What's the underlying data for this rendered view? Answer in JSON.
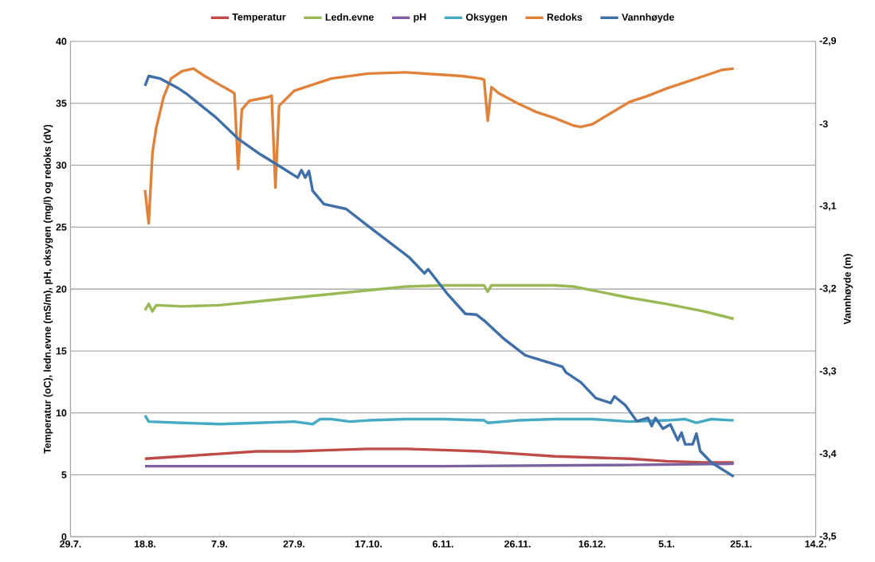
{
  "chart_data": {
    "type": "line",
    "ylabel": "Temperatur (oC), ledn.evne (mS/m), pH, oksygen (mg/l) og redoks (dV)",
    "y2label": "Vannhøyde (m)",
    "xlim": [
      "2010-07-29",
      "2011-02-14"
    ],
    "xticks": [
      {
        "value": "2010-07-29",
        "label": "29.7."
      },
      {
        "value": "2010-08-18",
        "label": "18.8."
      },
      {
        "value": "2010-09-07",
        "label": "7.9."
      },
      {
        "value": "2010-09-27",
        "label": "27.9."
      },
      {
        "value": "2010-10-17",
        "label": "17.10."
      },
      {
        "value": "2010-11-06",
        "label": "6.11."
      },
      {
        "value": "2010-11-26",
        "label": "26.11."
      },
      {
        "value": "2010-12-16",
        "label": "16.12."
      },
      {
        "value": "2011-01-05",
        "label": "5.1."
      },
      {
        "value": "2011-01-25",
        "label": "25.1."
      },
      {
        "value": "2011-02-14",
        "label": "14.2."
      }
    ],
    "ylim": [
      0,
      40
    ],
    "yticks": [
      0,
      5,
      10,
      15,
      20,
      25,
      30,
      35,
      40
    ],
    "y2lim": [
      -3.5,
      -2.9
    ],
    "y2ticks": [
      {
        "value": -3.5,
        "label": "-3,5"
      },
      {
        "value": -3.4,
        "label": "-3,4"
      },
      {
        "value": -3.3,
        "label": "-3,3"
      },
      {
        "value": -3.2,
        "label": "-3,2"
      },
      {
        "value": -3.1,
        "label": "-3,1"
      },
      {
        "value": -3,
        "label": "-3"
      },
      {
        "value": -2.9,
        "label": "-2,9"
      }
    ],
    "grid": "y",
    "legend": "top",
    "marker": "none",
    "line_style": "solid",
    "series": [
      {
        "name": "Temperatur",
        "color": "#be4b48",
        "x": [
          "2010-08-18",
          "2010-08-28",
          "2010-09-07",
          "2010-09-17",
          "2010-09-27",
          "2010-10-07",
          "2010-10-17",
          "2010-10-27",
          "2010-11-06",
          "2010-11-16",
          "2010-11-26",
          "2010-12-06",
          "2010-12-16",
          "2010-12-26",
          "2011-01-05",
          "2011-01-15",
          "2011-01-23"
        ],
        "values": [
          6.3,
          6.5,
          6.7,
          6.9,
          6.9,
          7.0,
          7.1,
          7.1,
          7.0,
          6.9,
          6.7,
          6.5,
          6.4,
          6.3,
          6.1,
          6.0,
          6.0
        ]
      },
      {
        "name": "Ledn.evne",
        "color": "#98b954",
        "x": [
          "2010-08-18",
          "2010-08-19",
          "2010-08-20",
          "2010-08-21",
          "2010-08-28",
          "2010-09-07",
          "2010-09-17",
          "2010-09-27",
          "2010-10-07",
          "2010-10-17",
          "2010-10-27",
          "2010-11-06",
          "2010-11-17",
          "2010-11-18",
          "2010-11-19",
          "2010-12-06",
          "2010-12-11",
          "2010-12-16",
          "2010-12-26",
          "2011-01-05",
          "2011-01-15",
          "2011-01-23"
        ],
        "values": [
          18.3,
          18.8,
          18.2,
          18.7,
          18.6,
          18.7,
          19.0,
          19.3,
          19.6,
          19.9,
          20.2,
          20.3,
          20.3,
          19.8,
          20.3,
          20.3,
          20.2,
          19.9,
          19.3,
          18.8,
          18.2,
          17.6
        ]
      },
      {
        "name": "pH",
        "color": "#7d60a0",
        "x": [
          "2010-08-18",
          "2010-09-07",
          "2010-11-06",
          "2010-12-26",
          "2011-01-23"
        ],
        "values": [
          5.7,
          5.7,
          5.7,
          5.8,
          5.9
        ]
      },
      {
        "name": "Oksygen",
        "color": "#46aac5",
        "x": [
          "2010-08-18",
          "2010-08-19",
          "2010-08-28",
          "2010-09-07",
          "2010-09-17",
          "2010-09-27",
          "2010-10-02",
          "2010-10-04",
          "2010-10-07",
          "2010-10-12",
          "2010-10-17",
          "2010-10-27",
          "2010-11-06",
          "2010-11-17",
          "2010-11-18",
          "2010-11-26",
          "2010-12-06",
          "2010-12-16",
          "2010-12-26",
          "2011-01-05",
          "2011-01-10",
          "2011-01-13",
          "2011-01-17",
          "2011-01-23"
        ],
        "values": [
          9.8,
          9.3,
          9.2,
          9.1,
          9.2,
          9.3,
          9.1,
          9.5,
          9.5,
          9.3,
          9.4,
          9.5,
          9.5,
          9.4,
          9.2,
          9.4,
          9.5,
          9.5,
          9.3,
          9.4,
          9.5,
          9.2,
          9.5,
          9.4
        ]
      },
      {
        "name": "Redoks",
        "color": "#e0823a",
        "x": [
          "2010-08-18",
          "2010-08-19",
          "2010-08-20",
          "2010-08-21",
          "2010-08-23",
          "2010-08-25",
          "2010-08-28",
          "2010-08-31",
          "2010-09-03",
          "2010-09-07",
          "2010-09-10",
          "2010-09-11",
          "2010-09-12",
          "2010-09-13",
          "2010-09-15",
          "2010-09-20",
          "2010-09-21",
          "2010-09-22",
          "2010-09-23",
          "2010-09-27",
          "2010-10-02",
          "2010-10-07",
          "2010-10-17",
          "2010-10-27",
          "2010-11-06",
          "2010-11-11",
          "2010-11-16",
          "2010-11-17",
          "2010-11-18",
          "2010-11-19",
          "2010-11-21",
          "2010-11-26",
          "2010-12-01",
          "2010-12-06",
          "2010-12-11",
          "2010-12-13",
          "2010-12-16",
          "2010-12-21",
          "2010-12-26",
          "2010-12-31",
          "2011-01-05",
          "2011-01-10",
          "2011-01-15",
          "2011-01-20",
          "2011-01-23"
        ],
        "values": [
          28.0,
          25.3,
          31.0,
          33.0,
          35.5,
          37.0,
          37.6,
          37.8,
          37.2,
          36.5,
          36.0,
          35.8,
          29.7,
          34.5,
          35.2,
          35.5,
          35.6,
          28.2,
          34.8,
          36.0,
          36.5,
          37.0,
          37.4,
          37.5,
          37.3,
          37.2,
          37.0,
          36.9,
          33.6,
          36.3,
          35.8,
          35.0,
          34.3,
          33.8,
          33.2,
          33.1,
          33.3,
          34.2,
          35.1,
          35.6,
          36.2,
          36.7,
          37.2,
          37.7,
          37.8
        ]
      },
      {
        "name": "Vannhøyde",
        "color": "#3f6fa8",
        "axis": "y2",
        "x": [
          "2010-08-18",
          "2010-08-19",
          "2010-08-22",
          "2010-08-27",
          "2010-08-29",
          "2010-09-06",
          "2010-09-12",
          "2010-09-18",
          "2010-09-22",
          "2010-09-28",
          "2010-09-29",
          "2010-09-30",
          "2010-10-01",
          "2010-10-02",
          "2010-10-05",
          "2010-10-11",
          "2010-10-17",
          "2010-10-28",
          "2010-11-01",
          "2010-11-02",
          "2010-11-07",
          "2010-11-12",
          "2010-11-15",
          "2010-11-17",
          "2010-11-22",
          "2010-11-28",
          "2010-11-30",
          "2010-12-08",
          "2010-12-09",
          "2010-12-13",
          "2010-12-17",
          "2010-12-21",
          "2010-12-22",
          "2010-12-25",
          "2010-12-28",
          "2010-12-31",
          "2011-01-01",
          "2011-01-02",
          "2011-01-04",
          "2011-01-06",
          "2011-01-08",
          "2011-01-09",
          "2011-01-10",
          "2011-01-12",
          "2011-01-13",
          "2011-01-14",
          "2011-01-17",
          "2011-01-23"
        ],
        "values": [
          -2.954,
          -2.942,
          -2.945,
          -2.957,
          -2.963,
          -2.992,
          -3.018,
          -3.037,
          -3.048,
          -3.065,
          -3.056,
          -3.065,
          -3.057,
          -3.081,
          -3.097,
          -3.103,
          -3.124,
          -3.162,
          -3.181,
          -3.176,
          -3.205,
          -3.23,
          -3.231,
          -3.238,
          -3.259,
          -3.28,
          -3.283,
          -3.294,
          -3.301,
          -3.313,
          -3.332,
          -3.338,
          -3.33,
          -3.341,
          -3.36,
          -3.356,
          -3.366,
          -3.356,
          -3.369,
          -3.364,
          -3.383,
          -3.374,
          -3.388,
          -3.388,
          -3.375,
          -3.396,
          -3.41,
          -3.427
        ]
      }
    ]
  }
}
